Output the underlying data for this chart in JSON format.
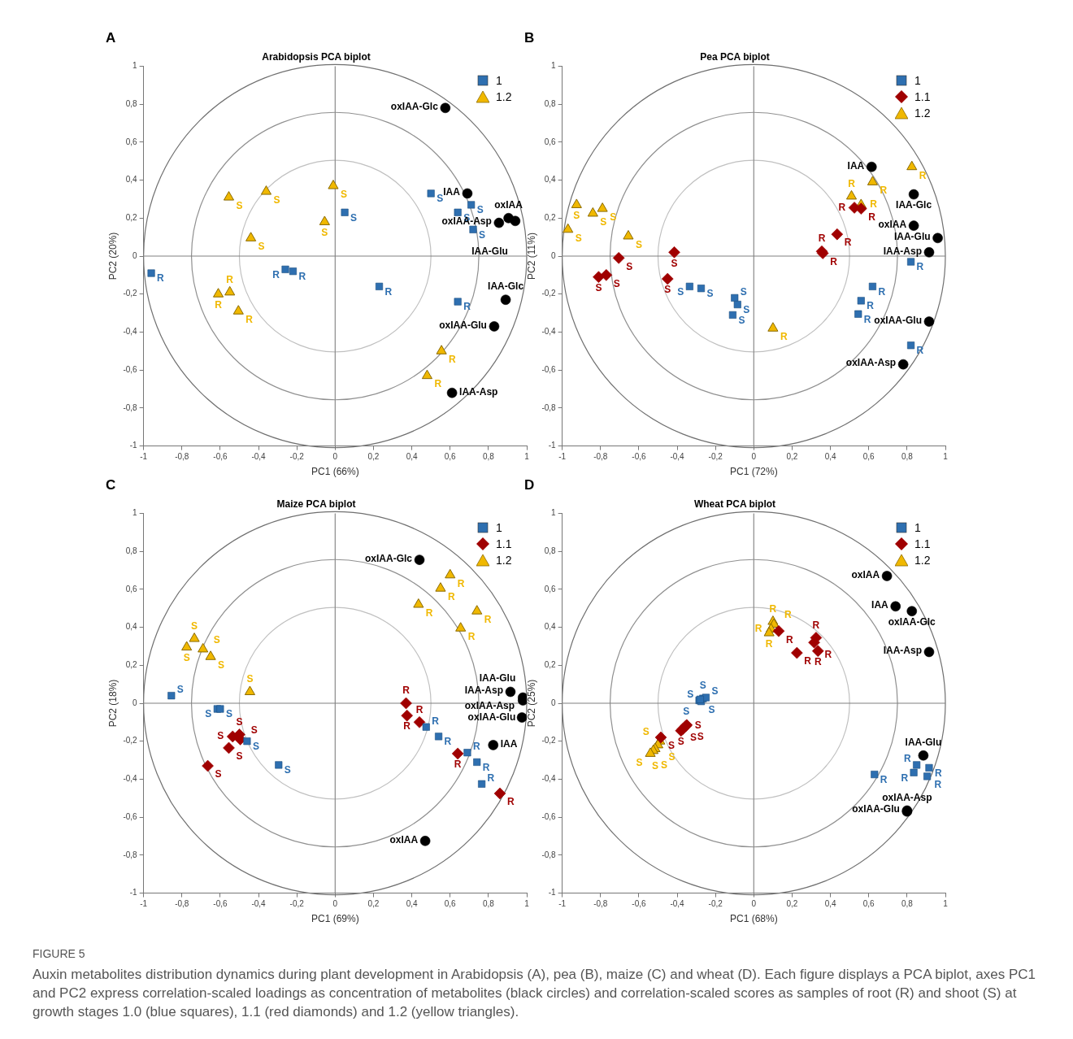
{
  "chart_data": [
    {
      "type": "scatter",
      "title": "Arabidopsis PCA biplot",
      "xlabel": "PC1 (66%)",
      "ylabel": "PC2 (20%)",
      "xlim": [
        -1,
        1
      ],
      "ylim": [
        -1,
        1
      ],
      "xticks": [
        -1,
        {
          "value": -0.8,
          "label": "-0,8"
        },
        {
          "value": -0.6,
          "label": "-0,6"
        },
        {
          "value": -0.4,
          "label": "-0,4"
        },
        {
          "value": -0.2,
          "label": "-0,2"
        },
        0,
        {
          "value": 0.2,
          "label": "0,2"
        },
        {
          "value": 0.4,
          "label": "0,4"
        },
        {
          "value": 0.6,
          "label": "0,6"
        },
        {
          "value": 0.8,
          "label": "0,8"
        },
        1
      ],
      "yticks": [
        -1,
        {
          "value": -0.8,
          "label": "-0,8"
        },
        {
          "value": -0.6,
          "label": "-0,6"
        },
        {
          "value": -0.4,
          "label": "-0,4"
        },
        {
          "value": -0.2,
          "label": "-0,2"
        },
        0,
        {
          "value": 0.2,
          "label": "0,2"
        },
        {
          "value": 0.4,
          "label": "0,4"
        },
        {
          "value": 0.6,
          "label": "0,6"
        },
        {
          "value": 0.8,
          "label": "0,8"
        },
        1
      ],
      "legend": "top right",
      "annotations": [
        "A"
      ],
      "ref_lines": [
        {
          "axis": "x",
          "value": 0,
          "color": "#8a8a8a"
        },
        {
          "axis": "y",
          "value": 0,
          "color": "#808080"
        }
      ],
      "series": [
        {
          "name": "1",
          "color": "#2e6fb0",
          "marker": "square",
          "x": [
            0.5,
            0.64,
            0.71,
            0.72,
            0.05,
            -0.96,
            -0.26,
            -0.22,
            0.23,
            0.64
          ],
          "values": [
            0.33,
            0.23,
            0.27,
            0.14,
            0.23,
            -0.09,
            -0.07,
            -0.08,
            -0.16,
            -0.24
          ],
          "value_labels": [
            "S",
            "S",
            "S",
            "S",
            "S",
            "R",
            "R",
            "R",
            "R",
            "R"
          ]
        },
        {
          "name": "1.2",
          "color": "#f0b800",
          "marker": "triangle",
          "x": [
            -0.555,
            -0.36,
            -0.01,
            -0.055,
            -0.44,
            -0.61,
            -0.55,
            -0.505,
            0.555,
            0.48
          ],
          "values": [
            0.31,
            0.34,
            0.37,
            0.18,
            0.095,
            -0.2,
            -0.19,
            -0.29,
            -0.5,
            -0.63
          ],
          "value_labels": [
            "S",
            "S",
            "S",
            "S",
            "S",
            "R",
            "R",
            "R",
            "R",
            "R"
          ]
        },
        {
          "color": "#000000",
          "marker": "circle",
          "x": [
            0.575,
            0.69,
            0.905,
            0.94,
            0.855,
            0.89,
            0.83,
            0.61
          ],
          "values": [
            0.78,
            0.33,
            0.2,
            0.185,
            0.175,
            -0.23,
            -0.37,
            -0.72
          ],
          "value_labels": [
            "oxIAA-Glc",
            "IAA",
            "oxIAA",
            "IAA-Glu",
            "oxIAA-Asp",
            "IAA-Glc",
            "oxIAA-Glu",
            "IAA-Asp"
          ]
        }
      ]
    },
    {
      "type": "scatter",
      "title": "Pea PCA biplot",
      "xlabel": "PC1 (72%)",
      "ylabel": "PC2 (11%)",
      "xlim": [
        -1,
        1
      ],
      "ylim": [
        -1,
        1
      ],
      "xticks": [
        -1,
        {
          "value": -0.8,
          "label": "-0,8"
        },
        {
          "value": -0.6,
          "label": "-0,6"
        },
        {
          "value": -0.4,
          "label": "-0,4"
        },
        {
          "value": -0.2,
          "label": "-0,2"
        },
        0,
        {
          "value": 0.2,
          "label": "0,2"
        },
        {
          "value": 0.4,
          "label": "0,4"
        },
        {
          "value": 0.6,
          "label": "0,6"
        },
        {
          "value": 0.8,
          "label": "0,8"
        },
        1
      ],
      "yticks": [
        -1,
        {
          "value": -0.8,
          "label": "-0,8"
        },
        {
          "value": -0.6,
          "label": "-0,6"
        },
        {
          "value": -0.4,
          "label": "-0,4"
        },
        {
          "value": -0.2,
          "label": "-0,2"
        },
        0,
        {
          "value": 0.2,
          "label": "0,2"
        },
        {
          "value": 0.4,
          "label": "0,4"
        },
        {
          "value": 0.6,
          "label": "0,6"
        },
        {
          "value": 0.8,
          "label": "0,8"
        },
        1
      ],
      "legend": "top right",
      "annotations": [
        "B"
      ],
      "ref_lines": [
        {
          "axis": "x",
          "value": 0,
          "color": "#8a8a8a"
        },
        {
          "axis": "y",
          "value": 0,
          "color": "#808080"
        }
      ],
      "series": [
        {
          "name": "1",
          "color": "#2e6fb0",
          "marker": "square",
          "x": [
            0.82,
            0.62,
            0.56,
            0.545,
            0.82,
            -0.335,
            -0.275,
            -0.1,
            -0.085,
            -0.11
          ],
          "values": [
            -0.03,
            -0.16,
            -0.235,
            -0.305,
            -0.47,
            -0.16,
            -0.17,
            -0.22,
            -0.255,
            -0.31
          ],
          "value_labels": [
            "R",
            "R",
            "R",
            "R",
            "R",
            "S",
            "S",
            "S",
            "S",
            "S"
          ]
        },
        {
          "name": "1.1",
          "color": "#a00000",
          "marker": "diamond",
          "x": [
            -0.415,
            -0.705,
            -0.81,
            -0.77,
            -0.45,
            0.355,
            0.36,
            0.435,
            0.525,
            0.56
          ],
          "values": [
            0.02,
            -0.01,
            -0.11,
            -0.1,
            -0.12,
            0.025,
            0.015,
            0.115,
            0.255,
            0.25
          ],
          "value_labels": [
            "S",
            "S",
            "S",
            "S",
            "S",
            "R",
            "R",
            "R",
            "R",
            "R"
          ]
        },
        {
          "name": "1.2",
          "color": "#f0b800",
          "marker": "triangle",
          "x": [
            -0.925,
            -0.84,
            -0.79,
            -0.97,
            -0.655,
            0.1,
            0.825,
            0.62,
            0.51,
            0.56
          ],
          "values": [
            0.27,
            0.225,
            0.25,
            0.14,
            0.105,
            -0.38,
            0.47,
            0.39,
            0.315,
            0.27
          ],
          "value_labels": [
            "S",
            "S",
            "S",
            "S",
            "S",
            "R",
            "R",
            "R",
            "R",
            "R"
          ]
        },
        {
          "color": "#000000",
          "marker": "circle",
          "x": [
            0.615,
            0.835,
            0.835,
            0.96,
            0.915,
            0.915,
            0.78
          ],
          "values": [
            0.47,
            0.325,
            0.16,
            0.095,
            0.02,
            -0.345,
            -0.57
          ],
          "value_labels": [
            "IAA",
            "IAA-Glc",
            "oxIAA",
            "IAA-Glu",
            "IAA-Asp",
            "oxIAA-Glu",
            "oxIAA-Asp"
          ]
        }
      ]
    },
    {
      "type": "scatter",
      "title": "Maize PCA biplot",
      "xlabel": "PC1 (69%)",
      "ylabel": "PC2 (18%)",
      "xlim": [
        -1,
        1
      ],
      "ylim": [
        -1,
        1
      ],
      "xticks": [
        -1,
        {
          "value": -0.8,
          "label": "-0,8"
        },
        {
          "value": -0.6,
          "label": "-0,6"
        },
        {
          "value": -0.4,
          "label": "-0,4"
        },
        {
          "value": -0.2,
          "label": "-0,2"
        },
        0,
        {
          "value": 0.2,
          "label": "0,2"
        },
        {
          "value": 0.4,
          "label": "0,4"
        },
        {
          "value": 0.6,
          "label": "0,6"
        },
        {
          "value": 0.8,
          "label": "0,8"
        },
        1
      ],
      "yticks": [
        -1,
        {
          "value": -0.8,
          "label": "-0,8"
        },
        {
          "value": -0.6,
          "label": "-0,6"
        },
        {
          "value": -0.4,
          "label": "-0,4"
        },
        {
          "value": -0.2,
          "label": "-0,2"
        },
        0,
        {
          "value": 0.2,
          "label": "0,2"
        },
        {
          "value": 0.4,
          "label": "0,4"
        },
        {
          "value": 0.6,
          "label": "0,6"
        },
        {
          "value": 0.8,
          "label": "0,8"
        },
        1
      ],
      "legend": "top right",
      "annotations": [
        "C"
      ],
      "ref_lines": [
        {
          "axis": "x",
          "value": 0,
          "color": "#8a8a8a"
        },
        {
          "axis": "y",
          "value": 0,
          "color": "#808080"
        }
      ],
      "series": [
        {
          "name": "1",
          "color": "#2e6fb0",
          "marker": "square",
          "x": [
            -0.855,
            -0.615,
            -0.6,
            -0.46,
            -0.295,
            0.475,
            0.54,
            0.69,
            0.74,
            0.765
          ],
          "values": [
            0.04,
            -0.03,
            -0.03,
            -0.2,
            -0.325,
            -0.125,
            -0.175,
            -0.26,
            -0.31,
            -0.425
          ],
          "value_labels": [
            "S",
            "S",
            "S",
            "S",
            "S",
            "R",
            "R",
            "R",
            "R",
            "R"
          ]
        },
        {
          "name": "1.1",
          "color": "#a00000",
          "marker": "diamond",
          "x": [
            0.37,
            0.375,
            0.44,
            0.64,
            0.86,
            -0.535,
            -0.5,
            -0.495,
            -0.555,
            -0.665
          ],
          "values": [
            0,
            -0.065,
            -0.1,
            -0.265,
            -0.475,
            -0.175,
            -0.165,
            -0.19,
            -0.235,
            -0.33
          ],
          "value_labels": [
            "R",
            "R",
            "R",
            "R",
            "R",
            "S",
            "S",
            "S",
            "S",
            "S"
          ]
        },
        {
          "name": "1.2",
          "color": "#f0b800",
          "marker": "triangle",
          "x": [
            0.6,
            0.55,
            0.435,
            0.74,
            0.655,
            -0.735,
            -0.775,
            -0.69,
            -0.65,
            -0.445
          ],
          "values": [
            0.675,
            0.605,
            0.52,
            0.485,
            0.395,
            0.34,
            0.295,
            0.285,
            0.245,
            0.06
          ],
          "value_labels": [
            "R",
            "R",
            "R",
            "R",
            "R",
            "S",
            "S",
            "S",
            "S",
            "S"
          ]
        },
        {
          "color": "#000000",
          "marker": "circle",
          "x": [
            0.44,
            0.915,
            0.98,
            0.98,
            0.975,
            0.825,
            0.47
          ],
          "values": [
            0.755,
            0.06,
            0.03,
            0.015,
            -0.075,
            -0.22,
            -0.725
          ],
          "value_labels": [
            "oxIAA-Glc",
            "IAA-Asp",
            "oxIAA-Glu",
            "IAA-Glu",
            "oxIAA-Asp",
            "IAA",
            "oxIAA"
          ]
        }
      ]
    },
    {
      "type": "scatter",
      "title": "Wheat PCA biplot",
      "xlabel": "PC1 (68%)",
      "ylabel": "PC2 (25%)",
      "xlim": [
        -1,
        1
      ],
      "ylim": [
        -1,
        1
      ],
      "xticks": [
        -1,
        {
          "value": -0.8,
          "label": "-0,8"
        },
        {
          "value": -0.6,
          "label": "-0,6"
        },
        {
          "value": -0.4,
          "label": "-0,4"
        },
        {
          "value": -0.2,
          "label": "-0,2"
        },
        0,
        {
          "value": 0.2,
          "label": "0,2"
        },
        {
          "value": 0.4,
          "label": "0,4"
        },
        {
          "value": 0.6,
          "label": "0,6"
        },
        {
          "value": 0.8,
          "label": "0,8"
        },
        1
      ],
      "yticks": [
        -1,
        {
          "value": -0.8,
          "label": "-0,8"
        },
        {
          "value": -0.6,
          "label": "-0,6"
        },
        {
          "value": -0.4,
          "label": "-0,4"
        },
        {
          "value": -0.2,
          "label": "-0,2"
        },
        0,
        {
          "value": 0.2,
          "label": "0,2"
        },
        {
          "value": 0.4,
          "label": "0,4"
        },
        {
          "value": 0.6,
          "label": "0,6"
        },
        {
          "value": 0.8,
          "label": "0,8"
        },
        1
      ],
      "legend": "top right",
      "annotations": [
        "D",
        "FIGURE 5",
        "Auxin metabolites distribution dynamics during plant development in Arabidopsis (A), pea (B), maize (C) and wheat (D). Each figure displays a PCA biplot, axes PC1 and PC2 express correlation-scaled loadings as concentration of metabolites (black circles) and correlation-scaled scores as samples of root (R) and shoot (S) at growth stages 1.0 (blue squares), 1.1 (red diamonds) and 1.2 (yellow triangles)."
      ],
      "ref_lines": [
        {
          "axis": "x",
          "value": 0,
          "color": "#8a8a8a"
        },
        {
          "axis": "y",
          "value": 0,
          "color": "#808080"
        }
      ],
      "series": [
        {
          "name": "1",
          "color": "#2e6fb0",
          "marker": "square",
          "x": [
            -0.285,
            -0.275,
            -0.265,
            -0.25,
            -0.28,
            0.63,
            0.85,
            0.835,
            0.915,
            0.905
          ],
          "values": [
            0.015,
            0.01,
            0.025,
            0.03,
            0.02,
            -0.375,
            -0.325,
            -0.365,
            -0.34,
            -0.385
          ],
          "value_labels": [
            "S",
            "S",
            "S",
            "S",
            "S",
            "R",
            "R",
            "R",
            "R",
            "R"
          ]
        },
        {
          "name": "1.1",
          "color": "#a00000",
          "marker": "diamond",
          "x": [
            0.13,
            0.225,
            0.315,
            0.325,
            0.335,
            -0.485,
            -0.38,
            -0.37,
            -0.355,
            -0.35
          ],
          "values": [
            0.38,
            0.265,
            0.32,
            0.345,
            0.275,
            -0.18,
            -0.145,
            -0.135,
            -0.12,
            -0.115
          ],
          "value_labels": [
            "R",
            "R",
            "R",
            "R",
            "R",
            "S",
            "S",
            "S",
            "S",
            "S"
          ]
        },
        {
          "name": "1.2",
          "color": "#f0b800",
          "marker": "triangle",
          "x": [
            0.1,
            0.105,
            0.09,
            0.08,
            -0.49,
            -0.5,
            -0.515,
            -0.525,
            -0.54
          ],
          "values": [
            0.43,
            0.415,
            0.39,
            0.37,
            -0.2,
            -0.22,
            -0.24,
            -0.25,
            -0.265
          ],
          "value_labels": [
            "R",
            "R",
            "R",
            "R",
            "S",
            "S",
            "S",
            "S",
            "S"
          ]
        },
        {
          "color": "#000000",
          "marker": "circle",
          "x": [
            0.695,
            0.74,
            0.825,
            0.915,
            0.885,
            0.8,
            0.8
          ],
          "values": [
            0.67,
            0.51,
            0.485,
            0.27,
            -0.275,
            -0.565,
            -0.57
          ],
          "value_labels": [
            "oxIAA",
            "IAA",
            "oxIAA-Glc",
            "IAA-Asp",
            "IAA-Glu",
            "oxIAA-Glu",
            "oxIAA-Asp"
          ]
        }
      ]
    }
  ]
}
